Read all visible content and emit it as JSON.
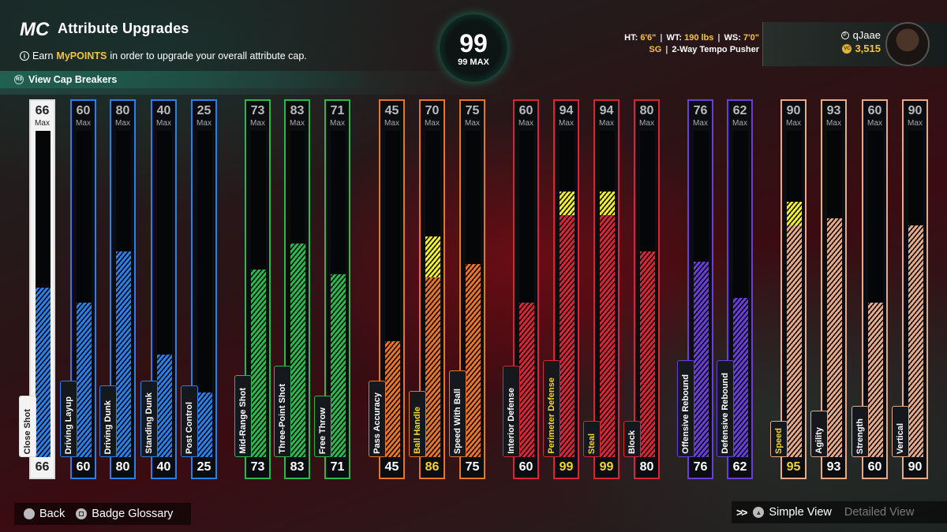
{
  "header": {
    "logo": "MC",
    "title": "Attribute Upgrades",
    "subtitle_prefix": "Earn ",
    "subtitle_highlight": "MyPOINTS",
    "subtitle_suffix": " in order to upgrade your overall attribute cap.",
    "cap_breakers": "View Cap Breakers",
    "cap_breakers_button": "R3"
  },
  "overall": {
    "value": "99",
    "max_label": "99 MAX"
  },
  "player": {
    "ht_label": "HT:",
    "ht": "6'6\"",
    "wt_label": "WT:",
    "wt": "190 lbs",
    "ws_label": "WS:",
    "ws": "7'0\"",
    "position": "SG",
    "separator": "|",
    "archetype": "2-Way Tempo Pusher",
    "name": "qJaae",
    "vc_icon": "vc-coin-icon",
    "vc": "3,515"
  },
  "colors": {
    "blue": "#2a7fe8",
    "green": "#2cb84e",
    "orange": "#e8742a",
    "red": "#d92535",
    "purple": "#6a3fd8",
    "tan": "#e6a98a",
    "boost": "#f0ee2a"
  },
  "max_label": "Max",
  "attributes": [
    {
      "name": "Close Shot",
      "max": "66",
      "cur": "66",
      "value": 66,
      "boost": 0,
      "color": "blue",
      "selected": true
    },
    {
      "name": "Driving Layup",
      "max": "60",
      "cur": "60",
      "value": 60,
      "boost": 0,
      "color": "blue"
    },
    {
      "name": "Driving Dunk",
      "max": "80",
      "cur": "80",
      "value": 80,
      "boost": 0,
      "color": "blue"
    },
    {
      "name": "Standing Dunk",
      "max": "40",
      "cur": "40",
      "value": 40,
      "boost": 0,
      "color": "blue"
    },
    {
      "name": "Post Control",
      "max": "25",
      "cur": "25",
      "value": 25,
      "boost": 0,
      "color": "blue"
    },
    {
      "name": "Mid-Range Shot",
      "max": "73",
      "cur": "73",
      "value": 73,
      "boost": 0,
      "color": "green"
    },
    {
      "name": "Three-Point Shot",
      "max": "83",
      "cur": "83",
      "value": 83,
      "boost": 0,
      "color": "green"
    },
    {
      "name": "Free Throw",
      "max": "71",
      "cur": "71",
      "value": 71,
      "boost": 0,
      "color": "green"
    },
    {
      "name": "Pass Accuracy",
      "max": "45",
      "cur": "45",
      "value": 45,
      "boost": 0,
      "color": "orange"
    },
    {
      "name": "Ball Handle",
      "max": "70",
      "cur": "86",
      "value": 70,
      "boost": 16,
      "color": "orange",
      "boosted": true
    },
    {
      "name": "Speed With Ball",
      "max": "75",
      "cur": "75",
      "value": 75,
      "boost": 0,
      "color": "orange"
    },
    {
      "name": "Interior Defense",
      "max": "60",
      "cur": "60",
      "value": 60,
      "boost": 0,
      "color": "red"
    },
    {
      "name": "Perimeter Defense",
      "max": "94",
      "cur": "99",
      "value": 94,
      "boost": 5,
      "color": "red",
      "boosted": true
    },
    {
      "name": "Steal",
      "max": "94",
      "cur": "99",
      "value": 94,
      "boost": 5,
      "color": "red",
      "boosted": true
    },
    {
      "name": "Block",
      "max": "80",
      "cur": "80",
      "value": 80,
      "boost": 0,
      "color": "red"
    },
    {
      "name": "Offensive Rebound",
      "max": "76",
      "cur": "76",
      "value": 76,
      "boost": 0,
      "color": "purple"
    },
    {
      "name": "Defensive Rebound",
      "max": "62",
      "cur": "62",
      "value": 62,
      "boost": 0,
      "color": "purple"
    },
    {
      "name": "Speed",
      "max": "90",
      "cur": "95",
      "value": 90,
      "boost": 5,
      "color": "tan",
      "boosted": true
    },
    {
      "name": "Agility",
      "max": "93",
      "cur": "93",
      "value": 93,
      "boost": 0,
      "color": "tan"
    },
    {
      "name": "Strength",
      "max": "60",
      "cur": "60",
      "value": 60,
      "boost": 0,
      "color": "tan"
    },
    {
      "name": "Vertical",
      "max": "90",
      "cur": "90",
      "value": 90,
      "boost": 0,
      "color": "tan"
    }
  ],
  "footer": {
    "back": "Back",
    "badge_glossary": "Badge Glossary",
    "simple_view": "Simple View",
    "detailed_view": "Detailed View"
  }
}
